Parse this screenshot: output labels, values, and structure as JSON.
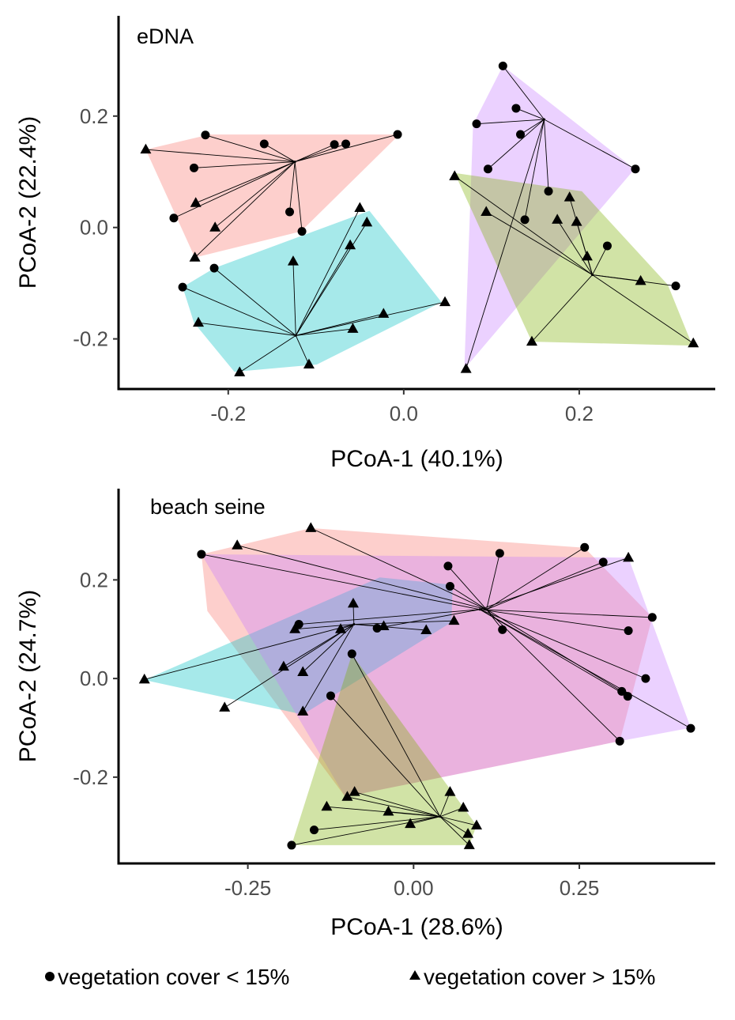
{
  "legend": {
    "items": [
      {
        "label": "vegetation cover < 15%",
        "shape": "circle"
      },
      {
        "label": "vegetation cover > 15%",
        "shape": "triangle"
      }
    ]
  },
  "colors": {
    "group_red": "#F8766D",
    "group_cyan": "#00BFC4",
    "group_purple": "#C77CFF",
    "group_green": "#7CAE00",
    "points": "#000000"
  },
  "chart_data": [
    {
      "type": "scatter",
      "panel_label": "eDNA",
      "xlabel": "PCoA-1 (40.1%)",
      "ylabel": "PCoA-2 (22.4%)",
      "xlim": [
        -0.325,
        0.355
      ],
      "ylim": [
        -0.29,
        0.38
      ],
      "xticks": [
        -0.2,
        0.0,
        0.2
      ],
      "xtick_labels": [
        "-0.2",
        "0.0",
        "0.2"
      ],
      "yticks": [
        -0.2,
        0.0,
        0.2
      ],
      "ytick_labels": [
        "-0.2",
        "0.0",
        "0.2"
      ],
      "grid": false,
      "groups": [
        {
          "color": "#F8766D",
          "hull": [
            [
              -0.294,
              0.14
            ],
            [
              -0.221,
              0.167
            ],
            [
              -0.005,
              0.167
            ],
            [
              -0.117,
              -0.007
            ],
            [
              -0.238,
              -0.054
            ]
          ],
          "centroid": [
            -0.124,
            0.118
          ],
          "points": [
            {
              "x": -0.294,
              "y": 0.14,
              "shape": "triangle"
            },
            {
              "x": -0.226,
              "y": 0.166,
              "shape": "circle"
            },
            {
              "x": -0.239,
              "y": 0.107,
              "shape": "circle"
            },
            {
              "x": -0.262,
              "y": 0.017,
              "shape": "circle"
            },
            {
              "x": -0.237,
              "y": 0.044,
              "shape": "triangle"
            },
            {
              "x": -0.215,
              "y": 0.0,
              "shape": "triangle"
            },
            {
              "x": -0.238,
              "y": -0.054,
              "shape": "triangle"
            },
            {
              "x": -0.159,
              "y": 0.15,
              "shape": "circle"
            },
            {
              "x": -0.13,
              "y": 0.028,
              "shape": "circle"
            },
            {
              "x": -0.116,
              "y": -0.007,
              "shape": "circle"
            },
            {
              "x": -0.079,
              "y": 0.149,
              "shape": "circle"
            },
            {
              "x": -0.066,
              "y": 0.15,
              "shape": "circle"
            },
            {
              "x": -0.007,
              "y": 0.167,
              "shape": "circle"
            }
          ]
        },
        {
          "color": "#00BFC4",
          "hull": [
            [
              -0.252,
              -0.107
            ],
            [
              -0.216,
              -0.073
            ],
            [
              -0.039,
              0.03
            ],
            [
              0.043,
              -0.134
            ],
            [
              -0.099,
              -0.246
            ],
            [
              -0.193,
              -0.259
            ],
            [
              -0.239,
              -0.171
            ]
          ],
          "centroid": [
            -0.123,
            -0.194
          ],
          "points": [
            {
              "x": -0.252,
              "y": -0.107,
              "shape": "circle"
            },
            {
              "x": -0.216,
              "y": -0.073,
              "shape": "circle"
            },
            {
              "x": -0.234,
              "y": -0.171,
              "shape": "triangle"
            },
            {
              "x": -0.187,
              "y": -0.26,
              "shape": "triangle"
            },
            {
              "x": -0.108,
              "y": -0.246,
              "shape": "triangle"
            },
            {
              "x": -0.126,
              "y": -0.061,
              "shape": "triangle"
            },
            {
              "x": -0.058,
              "y": -0.182,
              "shape": "triangle"
            },
            {
              "x": -0.023,
              "y": -0.155,
              "shape": "triangle"
            },
            {
              "x": -0.061,
              "y": -0.032,
              "shape": "triangle"
            },
            {
              "x": -0.05,
              "y": 0.035,
              "shape": "triangle"
            },
            {
              "x": -0.042,
              "y": 0.009,
              "shape": "triangle"
            },
            {
              "x": 0.047,
              "y": -0.134,
              "shape": "triangle"
            }
          ]
        },
        {
          "color": "#C77CFF",
          "hull": [
            [
              0.113,
              0.29
            ],
            [
              0.263,
              0.105
            ],
            [
              0.069,
              -0.254
            ],
            [
              0.079,
              0.185
            ]
          ],
          "centroid": [
            0.16,
            0.194
          ],
          "points": [
            {
              "x": 0.113,
              "y": 0.29,
              "shape": "circle"
            },
            {
              "x": 0.128,
              "y": 0.214,
              "shape": "circle"
            },
            {
              "x": 0.083,
              "y": 0.186,
              "shape": "circle"
            },
            {
              "x": 0.133,
              "y": 0.167,
              "shape": "circle"
            },
            {
              "x": 0.096,
              "y": 0.105,
              "shape": "circle"
            },
            {
              "x": 0.264,
              "y": 0.105,
              "shape": "circle"
            },
            {
              "x": 0.165,
              "y": 0.065,
              "shape": "circle"
            },
            {
              "x": 0.138,
              "y": 0.014,
              "shape": "circle"
            },
            {
              "x": 0.071,
              "y": -0.254,
              "shape": "triangle"
            }
          ]
        },
        {
          "color": "#7CAE00",
          "hull": [
            [
              0.058,
              0.098
            ],
            [
              0.203,
              0.065
            ],
            [
              0.301,
              -0.103
            ],
            [
              0.329,
              -0.212
            ],
            [
              0.146,
              -0.205
            ]
          ],
          "centroid": [
            0.215,
            -0.085
          ],
          "points": [
            {
              "x": 0.058,
              "y": 0.092,
              "shape": "triangle"
            },
            {
              "x": 0.094,
              "y": 0.028,
              "shape": "triangle"
            },
            {
              "x": 0.189,
              "y": 0.054,
              "shape": "triangle"
            },
            {
              "x": 0.175,
              "y": 0.014,
              "shape": "triangle"
            },
            {
              "x": 0.197,
              "y": 0.01,
              "shape": "triangle"
            },
            {
              "x": 0.209,
              "y": -0.052,
              "shape": "triangle"
            },
            {
              "x": 0.232,
              "y": -0.033,
              "shape": "circle"
            },
            {
              "x": 0.27,
              "y": -0.096,
              "shape": "triangle"
            },
            {
              "x": 0.31,
              "y": -0.105,
              "shape": "circle"
            },
            {
              "x": 0.146,
              "y": -0.205,
              "shape": "triangle"
            },
            {
              "x": 0.33,
              "y": -0.208,
              "shape": "triangle"
            }
          ]
        }
      ]
    },
    {
      "type": "scatter",
      "panel_label": "beach seine",
      "xlabel": "PCoA-1 (28.6%)",
      "ylabel": "PCoA-2 (24.7%)",
      "xlim": [
        -0.445,
        0.455
      ],
      "ylim": [
        -0.375,
        0.385
      ],
      "xticks": [
        -0.25,
        0.0,
        0.25
      ],
      "xtick_labels": [
        "-0.25",
        "0.00",
        "0.25"
      ],
      "yticks": [
        -0.2,
        0.0,
        0.2
      ],
      "ytick_labels": [
        "-0.2",
        "0.0",
        "0.2"
      ],
      "grid": false,
      "groups": [
        {
          "color": "#F8766D",
          "hull": [
            [
              -0.155,
              0.305
            ],
            [
              0.258,
              0.265
            ],
            [
              0.36,
              0.124
            ],
            [
              0.311,
              -0.127
            ],
            [
              -0.103,
              -0.24
            ],
            [
              -0.311,
              0.137
            ],
            [
              -0.32,
              0.252
            ]
          ],
          "centroid": [
            0.11,
            0.14
          ],
          "points": [
            {
              "x": -0.155,
              "y": 0.305,
              "shape": "triangle"
            },
            {
              "x": -0.266,
              "y": 0.27,
              "shape": "triangle"
            },
            {
              "x": 0.052,
              "y": 0.228,
              "shape": "circle"
            },
            {
              "x": 0.13,
              "y": 0.254,
              "shape": "circle"
            },
            {
              "x": 0.055,
              "y": 0.187,
              "shape": "circle"
            },
            {
              "x": 0.134,
              "y": 0.099,
              "shape": "circle"
            },
            {
              "x": 0.258,
              "y": 0.266,
              "shape": "circle"
            },
            {
              "x": 0.286,
              "y": 0.236,
              "shape": "circle"
            },
            {
              "x": 0.314,
              "y": -0.026,
              "shape": "circle"
            },
            {
              "x": 0.311,
              "y": -0.127,
              "shape": "circle"
            }
          ]
        },
        {
          "color": "#00BFC4",
          "hull": [
            [
              -0.406,
              -0.003
            ],
            [
              -0.167,
              -0.073
            ],
            [
              0.057,
              0.114
            ],
            [
              0.059,
              0.19
            ],
            [
              -0.051,
              0.205
            ]
          ],
          "centroid": [
            -0.09,
            0.11
          ],
          "points": [
            {
              "x": -0.406,
              "y": -0.002,
              "shape": "triangle"
            },
            {
              "x": -0.285,
              "y": -0.059,
              "shape": "triangle"
            },
            {
              "x": -0.167,
              "y": -0.067,
              "shape": "triangle"
            },
            {
              "x": -0.196,
              "y": 0.024,
              "shape": "triangle"
            },
            {
              "x": -0.167,
              "y": 0.013,
              "shape": "triangle"
            },
            {
              "x": -0.179,
              "y": 0.1,
              "shape": "triangle"
            },
            {
              "x": -0.11,
              "y": 0.1,
              "shape": "triangle"
            },
            {
              "x": -0.091,
              "y": 0.152,
              "shape": "triangle"
            },
            {
              "x": -0.045,
              "y": 0.106,
              "shape": "triangle"
            },
            {
              "x": 0.019,
              "y": 0.098,
              "shape": "triangle"
            },
            {
              "x": 0.061,
              "y": 0.117,
              "shape": "triangle"
            }
          ]
        },
        {
          "color": "#C77CFF",
          "hull": [
            [
              -0.32,
              0.252
            ],
            [
              0.324,
              0.245
            ],
            [
              0.418,
              -0.1
            ],
            [
              0.311,
              -0.127
            ],
            [
              -0.103,
              -0.24
            ]
          ],
          "centroid": [
            0.1,
            0.14
          ],
          "points": [
            {
              "x": -0.32,
              "y": 0.252,
              "shape": "circle"
            },
            {
              "x": -0.173,
              "y": 0.11,
              "shape": "circle"
            },
            {
              "x": -0.055,
              "y": 0.102,
              "shape": "circle"
            },
            {
              "x": 0.324,
              "y": 0.245,
              "shape": "triangle"
            },
            {
              "x": 0.36,
              "y": 0.124,
              "shape": "circle"
            },
            {
              "x": 0.324,
              "y": 0.097,
              "shape": "circle"
            },
            {
              "x": 0.35,
              "y": 0.0,
              "shape": "circle"
            },
            {
              "x": 0.323,
              "y": -0.036,
              "shape": "circle"
            },
            {
              "x": 0.418,
              "y": -0.101,
              "shape": "circle"
            }
          ]
        },
        {
          "color": "#7CAE00",
          "hull": [
            [
              -0.093,
              0.049
            ],
            [
              0.095,
              -0.298
            ],
            [
              0.084,
              -0.338
            ],
            [
              -0.184,
              -0.338
            ]
          ],
          "centroid": [
            0.04,
            -0.28
          ],
          "points": [
            {
              "x": -0.093,
              "y": 0.05,
              "shape": "circle"
            },
            {
              "x": -0.15,
              "y": -0.307,
              "shape": "circle"
            },
            {
              "x": -0.184,
              "y": -0.338,
              "shape": "circle"
            },
            {
              "x": -0.125,
              "y": -0.035,
              "shape": "circle"
            },
            {
              "x": -0.131,
              "y": -0.26,
              "shape": "triangle"
            },
            {
              "x": -0.1,
              "y": -0.24,
              "shape": "triangle"
            },
            {
              "x": -0.089,
              "y": -0.23,
              "shape": "triangle"
            },
            {
              "x": -0.038,
              "y": -0.27,
              "shape": "triangle"
            },
            {
              "x": -0.005,
              "y": -0.295,
              "shape": "triangle"
            },
            {
              "x": 0.055,
              "y": -0.23,
              "shape": "triangle"
            },
            {
              "x": 0.075,
              "y": -0.262,
              "shape": "triangle"
            },
            {
              "x": 0.095,
              "y": -0.298,
              "shape": "triangle"
            },
            {
              "x": 0.082,
              "y": -0.315,
              "shape": "triangle"
            },
            {
              "x": 0.084,
              "y": -0.338,
              "shape": "triangle"
            }
          ]
        }
      ]
    }
  ]
}
